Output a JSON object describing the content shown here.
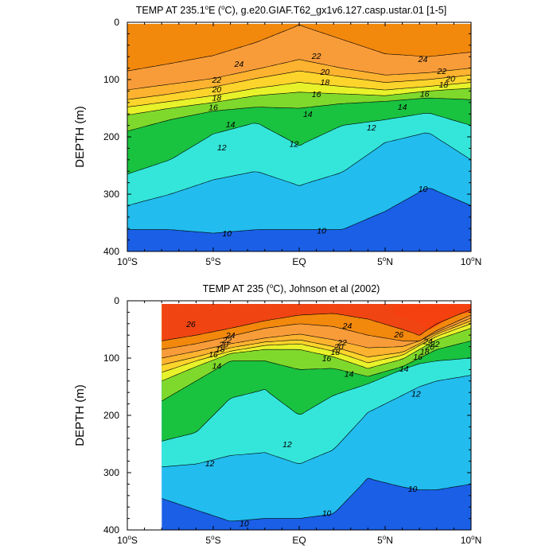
{
  "chart_data": [
    {
      "type": "heatmap",
      "title": "TEMP AT 235.1°E (°C), g.e20.GIAF.T62_gx1v6.127.casp.ustar.01 [1-5]",
      "title_parts": {
        "pre": "TEMP AT 235.1",
        "deg1": "o",
        "mid1": "E (",
        "deg2": "o",
        "post": "C), g.e20.GIAF.T62_gx1v6.127.casp.ustar.01 [1-5]"
      },
      "ylabel": "DEPTH (m)",
      "xlim": [
        -10,
        10
      ],
      "ylim": [
        0,
        400
      ],
      "y_inverted": true,
      "x_ticks": [
        {
          "value": -10,
          "text": "10",
          "sup": "o",
          "hemi": "S"
        },
        {
          "value": -5,
          "text": "5",
          "sup": "o",
          "hemi": "S"
        },
        {
          "value": 0,
          "text": "EQ",
          "sup": "",
          "hemi": ""
        },
        {
          "value": 5,
          "text": "5",
          "sup": "o",
          "hemi": "N"
        },
        {
          "value": 10,
          "text": "10",
          "sup": "o",
          "hemi": "N"
        }
      ],
      "y_ticks": [
        0,
        100,
        200,
        300,
        400
      ],
      "data_xrange": [
        -10,
        10
      ],
      "x": [
        -10,
        -7.5,
        -5,
        -2.5,
        0,
        2.5,
        5,
        7.5,
        10
      ],
      "isotherm_depths": [
        {
          "temp": 26,
          "depth": [
            null,
            null,
            null,
            null,
            null,
            null,
            null,
            null,
            null
          ]
        },
        {
          "temp": 24,
          "depth": [
            85,
            72,
            58,
            35,
            5,
            30,
            55,
            60,
            52
          ]
        },
        {
          "temp": 22,
          "depth": [
            118,
            108,
            98,
            82,
            65,
            80,
            92,
            88,
            80
          ]
        },
        {
          "temp": 20,
          "depth": [
            135,
            125,
            113,
            98,
            85,
            95,
            105,
            100,
            92
          ]
        },
        {
          "temp": 18,
          "depth": [
            148,
            138,
            128,
            115,
            105,
            112,
            118,
            112,
            105
          ]
        },
        {
          "temp": 16,
          "depth": [
            162,
            150,
            140,
            128,
            122,
            125,
            128,
            120,
            115
          ]
        },
        {
          "temp": 14,
          "depth": [
            190,
            170,
            155,
            148,
            150,
            142,
            138,
            132,
            135
          ]
        },
        {
          "temp": 12,
          "depth": [
            265,
            240,
            195,
            175,
            215,
            180,
            170,
            158,
            180
          ]
        },
        {
          "temp": 11,
          "depth": [
            320,
            300,
            275,
            260,
            285,
            262,
            210,
            192,
            240
          ]
        },
        {
          "temp": 10,
          "depth": [
            362,
            362,
            368,
            362,
            362,
            362,
            330,
            288,
            320
          ]
        }
      ],
      "labels": [
        {
          "text": "24",
          "x": -3.5,
          "y": 72
        },
        {
          "text": "22",
          "x": -4.8,
          "y": 100
        },
        {
          "text": "20",
          "x": -4.8,
          "y": 117
        },
        {
          "text": "18",
          "x": -4.8,
          "y": 131
        },
        {
          "text": "16",
          "x": -5,
          "y": 148
        },
        {
          "text": "14",
          "x": -4,
          "y": 178
        },
        {
          "text": "12",
          "x": -4.5,
          "y": 218
        },
        {
          "text": "22",
          "x": 1,
          "y": 58
        },
        {
          "text": "20",
          "x": 1.5,
          "y": 86
        },
        {
          "text": "18",
          "x": 1.5,
          "y": 104
        },
        {
          "text": "16",
          "x": 1,
          "y": 125
        },
        {
          "text": "14",
          "x": 0.5,
          "y": 160
        },
        {
          "text": "12",
          "x": -0.3,
          "y": 212
        },
        {
          "text": "12",
          "x": 4.2,
          "y": 183
        },
        {
          "text": "14",
          "x": 6,
          "y": 147
        },
        {
          "text": "16",
          "x": 7.3,
          "y": 124
        },
        {
          "text": "18",
          "x": 8.4,
          "y": 108
        },
        {
          "text": "20",
          "x": 8.8,
          "y": 98
        },
        {
          "text": "22",
          "x": 8.3,
          "y": 85
        },
        {
          "text": "24",
          "x": 7.2,
          "y": 64
        },
        {
          "text": "10",
          "x": 7.2,
          "y": 290
        },
        {
          "text": "10",
          "x": -4.2,
          "y": 368
        },
        {
          "text": "10",
          "x": 1.3,
          "y": 363
        }
      ]
    },
    {
      "type": "heatmap",
      "title": "TEMP AT 235 (°C), Johnson et al (2002)",
      "title_parts": {
        "pre": "TEMP AT 235 (",
        "deg": "o",
        "post": "C), Johnson et al (2002)"
      },
      "ylabel": "DEPTH (m)",
      "xlim": [
        -10,
        10
      ],
      "ylim": [
        0,
        400
      ],
      "y_inverted": true,
      "x_ticks": [
        {
          "value": -10,
          "text": "10",
          "sup": "o",
          "hemi": "S"
        },
        {
          "value": -5,
          "text": "5",
          "sup": "o",
          "hemi": "S"
        },
        {
          "value": 0,
          "text": "EQ",
          "sup": "",
          "hemi": ""
        },
        {
          "value": 5,
          "text": "5",
          "sup": "o",
          "hemi": "N"
        },
        {
          "value": 10,
          "text": "10",
          "sup": "o",
          "hemi": "N"
        }
      ],
      "y_ticks": [
        0,
        100,
        200,
        300,
        400
      ],
      "data_xrange": [
        -8,
        10
      ],
      "x": [
        -8,
        -6,
        -4,
        -2,
        0,
        2,
        4,
        6,
        7,
        8,
        10
      ],
      "isotherm_depths": [
        {
          "temp": 26,
          "depth": [
            70,
            60,
            48,
            35,
            25,
            22,
            32,
            50,
            60,
            40,
            15
          ]
        },
        {
          "temp": 24,
          "depth": [
            85,
            75,
            62,
            48,
            40,
            45,
            60,
            70,
            70,
            52,
            25
          ]
        },
        {
          "temp": 22,
          "depth": [
            100,
            88,
            75,
            65,
            58,
            68,
            82,
            80,
            70,
            55,
            30
          ]
        },
        {
          "temp": 20,
          "depth": [
            112,
            98,
            82,
            72,
            68,
            80,
            98,
            90,
            75,
            58,
            35
          ]
        },
        {
          "temp": 18,
          "depth": [
            125,
            105,
            88,
            78,
            75,
            88,
            108,
            95,
            78,
            62,
            40
          ]
        },
        {
          "temp": 16,
          "depth": [
            140,
            115,
            92,
            85,
            85,
            98,
            118,
            102,
            85,
            68,
            48
          ]
        },
        {
          "temp": 14,
          "depth": [
            175,
            140,
            105,
            105,
            120,
            118,
            132,
            115,
            100,
            85,
            70
          ]
        },
        {
          "temp": 12,
          "depth": [
            245,
            230,
            170,
            155,
            200,
            165,
            145,
            120,
            110,
            105,
            100
          ]
        },
        {
          "temp": 11,
          "depth": [
            290,
            285,
            270,
            265,
            285,
            260,
            195,
            165,
            150,
            140,
            130
          ]
        },
        {
          "temp": 10,
          "depth": [
            345,
            365,
            385,
            380,
            380,
            372,
            310,
            325,
            330,
            330,
            320
          ]
        }
      ],
      "labels": [
        {
          "text": "26",
          "x": -6.3,
          "y": 40
        },
        {
          "text": "24",
          "x": -4,
          "y": 60
        },
        {
          "text": "22",
          "x": -4.2,
          "y": 68
        },
        {
          "text": "20",
          "x": -4.4,
          "y": 76
        },
        {
          "text": "18",
          "x": -4.6,
          "y": 84
        },
        {
          "text": "16",
          "x": -5,
          "y": 93
        },
        {
          "text": "14",
          "x": -4.8,
          "y": 113
        },
        {
          "text": "24",
          "x": 2.8,
          "y": 43
        },
        {
          "text": "22",
          "x": 2.5,
          "y": 72
        },
        {
          "text": "20",
          "x": 2.3,
          "y": 80
        },
        {
          "text": "18",
          "x": 2.1,
          "y": 89
        },
        {
          "text": "16",
          "x": 1.6,
          "y": 100
        },
        {
          "text": "14",
          "x": 2.9,
          "y": 127
        },
        {
          "text": "26",
          "x": 5.8,
          "y": 58
        },
        {
          "text": "24",
          "x": 7.5,
          "y": 70
        },
        {
          "text": "22",
          "x": 7.9,
          "y": 75
        },
        {
          "text": "20",
          "x": 7.6,
          "y": 80
        },
        {
          "text": "18",
          "x": 7.3,
          "y": 88
        },
        {
          "text": "16",
          "x": 6.9,
          "y": 97
        },
        {
          "text": "14",
          "x": 6.1,
          "y": 118
        },
        {
          "text": "12",
          "x": 6.8,
          "y": 162
        },
        {
          "text": "12",
          "x": -0.7,
          "y": 250
        },
        {
          "text": "12",
          "x": -5.2,
          "y": 283
        },
        {
          "text": "10",
          "x": 6.6,
          "y": 328
        },
        {
          "text": "10",
          "x": 1.6,
          "y": 370
        },
        {
          "text": "10",
          "x": -3.2,
          "y": 388
        }
      ],
      "hot_cell": {
        "temp": 28,
        "x": [
          5.5,
          10
        ],
        "depth": [
          0,
          50
        ]
      }
    }
  ],
  "palette": {
    "bands": [
      {
        "above": 26,
        "color": "#f04412"
      },
      {
        "above": 24,
        "color": "#f2880c"
      },
      {
        "above": 22,
        "color": "#f89c3a"
      },
      {
        "above": 20,
        "color": "#fdb32f"
      },
      {
        "above": 18,
        "color": "#fcd42b"
      },
      {
        "above": 16,
        "color": "#e7f22a"
      },
      {
        "above": 14,
        "color": "#7fd92c"
      },
      {
        "above": 12,
        "color": "#19c23f"
      },
      {
        "above": 11,
        "color": "#34e6da"
      },
      {
        "above": 10,
        "color": "#22bcef"
      },
      {
        "above": 9,
        "color": "#138de8"
      },
      {
        "above": -99,
        "color": "#1a5fe6"
      }
    ],
    "hot": "#f5410f",
    "top": "#ee8a0e"
  }
}
